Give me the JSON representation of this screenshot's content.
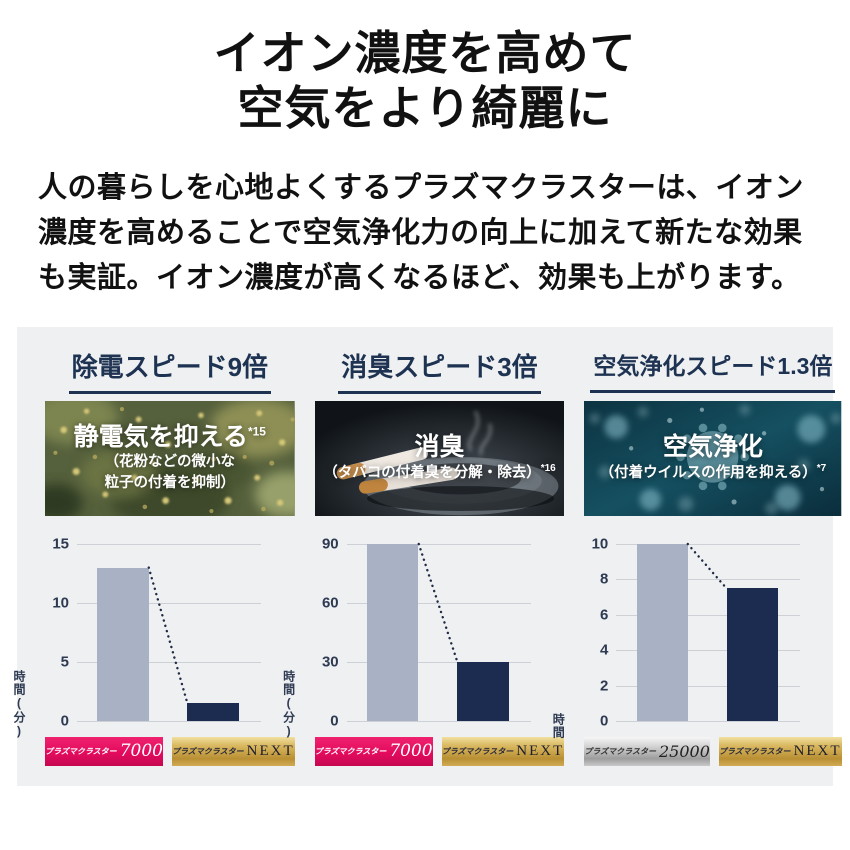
{
  "colors": {
    "page_bg": "#ffffff",
    "panel_bg": "#eef0f1",
    "heading_navy": "#1e3252",
    "text_black": "#111111",
    "grid_gray": "#cdd1d6",
    "bar_light": "#a9b2c5",
    "bar_dark": "#1c2b50",
    "dotted_line": "#1f2a44",
    "badge_pink": "#e40a5e",
    "badge_gold": "#d2ab55",
    "badge_silver": "#c0c0c0"
  },
  "header": {
    "title_line1": "イオン濃度を高めて",
    "title_line2": "空気をより綺麗に",
    "intro": "人の暮らしを心地よくするプラズマクラスターは、イオン濃度を高めることで空気浄化力の向上に加えて新たな効果も実証。イオン濃度が高くなるほど、効果も上がります。"
  },
  "panels": [
    {
      "header": "除電スピード9倍",
      "image": {
        "caption_main": "静電気を抑える",
        "main_note": "*15",
        "sub_line1": "（花粉などの微小な",
        "sub_line2": "粒子の付着を抑制）",
        "sub_note": ""
      },
      "products": [
        {
          "brand": "プラズマクラスター",
          "model": "7000",
          "style": "pink"
        },
        {
          "brand": "プラズマクラスター",
          "model": "NEXT",
          "style": "gold"
        }
      ]
    },
    {
      "header": "消臭スピード3倍",
      "image": {
        "caption_main": "消臭",
        "main_note": "",
        "sub_line1": "（タバコの付着臭を分解・除去）",
        "sub_line2": "",
        "sub_note": "*16"
      },
      "products": [
        {
          "brand": "プラズマクラスター",
          "model": "7000",
          "style": "pink"
        },
        {
          "brand": "プラズマクラスター",
          "model": "NEXT",
          "style": "gold"
        }
      ]
    },
    {
      "header": "空気浄化スピード1.3倍",
      "image": {
        "caption_main": "空気浄化",
        "main_note": "",
        "sub_line1": "（付着ウイルスの作用を抑える）",
        "sub_line2": "",
        "sub_note": "*7"
      },
      "products": [
        {
          "brand": "プラズマクラスター",
          "model": "25000",
          "style": "silver"
        },
        {
          "brand": "プラズマクラスター",
          "model": "NEXT",
          "style": "gold"
        }
      ]
    }
  ],
  "chart_data": [
    {
      "type": "bar",
      "title": "除電スピード9倍",
      "categories": [
        "プラズマクラスター7000",
        "プラズマクラスターNEXT"
      ],
      "values": [
        13,
        1.5
      ],
      "ylabel": "時間(分)",
      "ylim": [
        0,
        15
      ],
      "ticks": [
        0,
        5,
        10,
        15
      ],
      "bar_colors": [
        "#a9b2c5",
        "#1c2b50"
      ],
      "annotation": "dotted decline line from bar 1 top to bar 2 top",
      "grid": true,
      "legend": "none"
    },
    {
      "type": "bar",
      "title": "消臭スピード3倍",
      "categories": [
        "プラズマクラスター7000",
        "プラズマクラスターNEXT"
      ],
      "values": [
        90,
        30
      ],
      "ylabel": "時間(分)",
      "ylim": [
        0,
        90
      ],
      "ticks": [
        0,
        30,
        60,
        90
      ],
      "bar_colors": [
        "#a9b2c5",
        "#1c2b50"
      ],
      "annotation": "dotted decline line from bar 1 top to bar 2 top",
      "grid": true,
      "legend": "none"
    },
    {
      "type": "bar",
      "title": "空気浄化スピード1.3倍",
      "categories": [
        "プラズマクラスター25000",
        "プラズマクラスターNEXT"
      ],
      "values": [
        10,
        7.5
      ],
      "ylabel": "時間",
      "ylim": [
        0,
        10
      ],
      "ticks": [
        0,
        2,
        4,
        6,
        8,
        10
      ],
      "bar_colors": [
        "#a9b2c5",
        "#1c2b50"
      ],
      "annotation": "dotted decline line from bar 1 top to bar 2 top",
      "grid": true,
      "legend": "none"
    }
  ]
}
